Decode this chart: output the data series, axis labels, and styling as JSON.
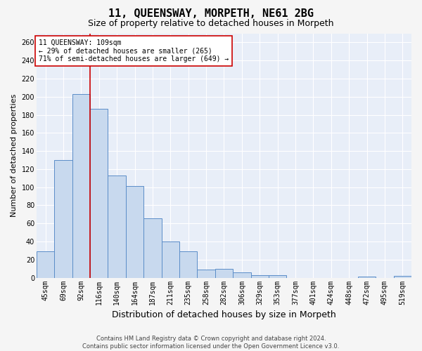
{
  "title": "11, QUEENSWAY, MORPETH, NE61 2BG",
  "subtitle": "Size of property relative to detached houses in Morpeth",
  "xlabel": "Distribution of detached houses by size in Morpeth",
  "ylabel": "Number of detached properties",
  "categories": [
    "45sqm",
    "69sqm",
    "92sqm",
    "116sqm",
    "140sqm",
    "164sqm",
    "187sqm",
    "211sqm",
    "235sqm",
    "258sqm",
    "282sqm",
    "306sqm",
    "329sqm",
    "353sqm",
    "377sqm",
    "401sqm",
    "424sqm",
    "448sqm",
    "472sqm",
    "495sqm",
    "519sqm"
  ],
  "values": [
    29,
    130,
    203,
    187,
    113,
    101,
    66,
    40,
    29,
    9,
    10,
    6,
    3,
    3,
    0,
    0,
    0,
    0,
    1,
    0,
    2
  ],
  "bar_color": "#c8d9ee",
  "bar_edge_color": "#5b8dc8",
  "vline_color": "#cc0000",
  "vline_x": 2.5,
  "annotation_line1": "11 QUEENSWAY: 109sqm",
  "annotation_line2": "← 29% of detached houses are smaller (265)",
  "annotation_line3": "71% of semi-detached houses are larger (649) →",
  "annotation_box_facecolor": "#ffffff",
  "annotation_box_edgecolor": "#cc0000",
  "ylim": [
    0,
    270
  ],
  "yticks": [
    0,
    20,
    40,
    60,
    80,
    100,
    120,
    140,
    160,
    180,
    200,
    220,
    240,
    260
  ],
  "background_color": "#e8eef8",
  "grid_color": "#ffffff",
  "fig_facecolor": "#f5f5f5",
  "title_fontsize": 11,
  "subtitle_fontsize": 9,
  "xlabel_fontsize": 9,
  "ylabel_fontsize": 8,
  "tick_fontsize": 7,
  "annotation_fontsize": 7,
  "footer_line1": "Contains HM Land Registry data © Crown copyright and database right 2024.",
  "footer_line2": "Contains public sector information licensed under the Open Government Licence v3.0.",
  "footer_fontsize": 6
}
